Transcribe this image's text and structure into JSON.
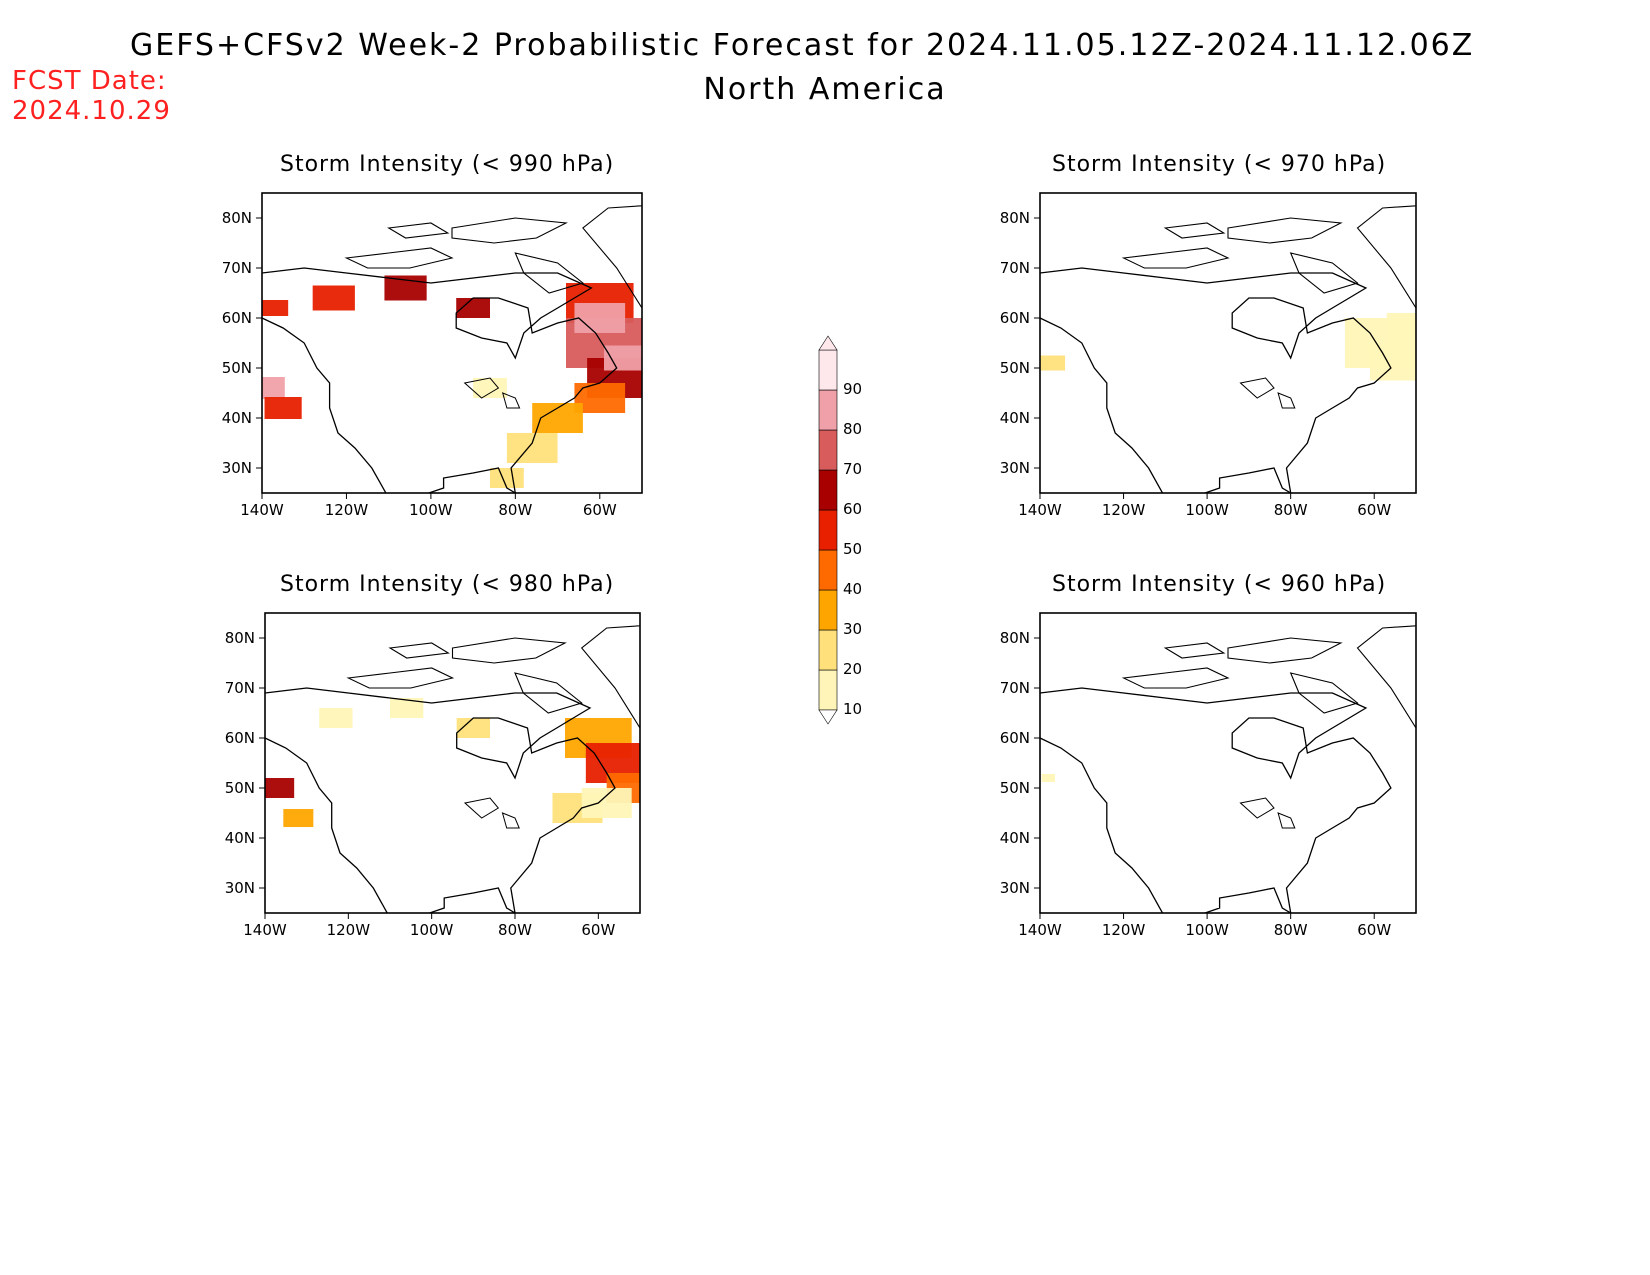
{
  "header": {
    "title": "GEFS+CFSv2 Week-2 Probabilistic Forecast for 2024.11.05.12Z-2024.11.12.06Z",
    "subtitle": "North America",
    "fcst_label": "FCST Date:",
    "fcst_date": "2024.10.29"
  },
  "axes": {
    "lat_labels": [
      "80N",
      "70N",
      "60N",
      "50N",
      "40N",
      "30N"
    ],
    "lon_labels": [
      "140W",
      "120W",
      "100W",
      "80W",
      "60W"
    ],
    "lat_values": [
      80,
      70,
      60,
      50,
      40,
      30
    ],
    "lon_values": [
      -140,
      -120,
      -100,
      -80,
      -60
    ],
    "lon_range": [
      -140,
      -50
    ],
    "lat_range": [
      25,
      85
    ]
  },
  "colorbar": {
    "levels": [
      "10",
      "20",
      "30",
      "40",
      "50",
      "60",
      "70",
      "80",
      "90"
    ],
    "colors": [
      "#fff5b8",
      "#ffe07a",
      "#ffa500",
      "#ff6a00",
      "#e82000",
      "#a80000",
      "#d85c5c",
      "#f0a0a8",
      "#ffe8ec"
    ]
  },
  "panels": [
    {
      "title": "Storm Intensity (< 990 hPa)"
    },
    {
      "title": "Storm Intensity (< 970 hPa)"
    },
    {
      "title": "Storm Intensity (< 980 hPa)"
    },
    {
      "title": "Storm Intensity (< 960 hPa)"
    }
  ]
}
